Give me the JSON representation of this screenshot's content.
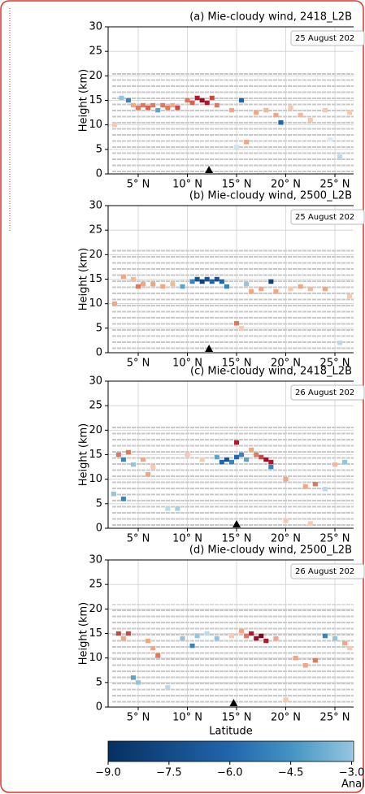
{
  "chart_data": [
    {
      "type": "heatmap",
      "title": "(a) Mie-cloudy wind, 2418_L2B",
      "annotation": "25 August 202",
      "ylabel": "Height (km)",
      "xlim": [
        1.94,
        26.9
      ],
      "ylim": [
        0,
        30
      ],
      "yticks": [
        0,
        5,
        10,
        15,
        20,
        25,
        30
      ],
      "xticks": [
        {
          "value": 5,
          "label": "5° N"
        },
        {
          "value": 10,
          "label": "10° N"
        },
        {
          "value": 15,
          "label": "15° N"
        },
        {
          "value": 20,
          "label": "20° N"
        },
        {
          "value": 25,
          "label": "25° N"
        }
      ],
      "marker_lat": 12.2,
      "grid": true,
      "cells": {
        "lat": [
          2.6,
          3.3,
          4.0,
          4.5,
          5.0,
          5.5,
          6.0,
          6.5,
          7.0,
          7.5,
          8.0,
          8.5,
          9.0,
          10.0,
          10.5,
          11.0,
          11.5,
          12.0,
          12.5,
          13.0,
          14.5,
          15.5,
          16.0,
          17.0,
          18.0,
          19.0,
          19.5,
          20.5,
          21.5,
          22.5,
          24.0,
          25.5,
          26.5,
          15.0,
          24.5
        ],
        "height": [
          10,
          15.5,
          15,
          14,
          13.5,
          14,
          13.5,
          14,
          13,
          14,
          13.5,
          14,
          13.5,
          15,
          14.5,
          15.5,
          15,
          14.5,
          15.5,
          14,
          13,
          15,
          6.5,
          12.5,
          13,
          12,
          10.5,
          13.5,
          12,
          11,
          13,
          3.5,
          12.5,
          5.5,
          7
        ],
        "values": [
          2,
          -3,
          -5,
          3,
          4,
          4,
          4.5,
          4,
          -4,
          4,
          4,
          3,
          5,
          4,
          4.5,
          6,
          7,
          6,
          5,
          4,
          3,
          -6,
          3,
          3,
          2.5,
          3,
          -6,
          2,
          2.5,
          2,
          2,
          -2,
          2,
          -1.5,
          -1
        ]
      }
    },
    {
      "type": "heatmap",
      "title": "(b) Mie-cloudy wind, 2500_L2B",
      "annotation": "25 August 202",
      "ylabel": "Height (km)",
      "xlim": [
        1.94,
        26.9
      ],
      "ylim": [
        0,
        30
      ],
      "yticks": [
        0,
        5,
        10,
        15,
        20,
        25,
        30
      ],
      "xticks": [
        {
          "value": 5,
          "label": "5° N"
        },
        {
          "value": 10,
          "label": "10° N"
        },
        {
          "value": 15,
          "label": "15° N"
        },
        {
          "value": 20,
          "label": "20° N"
        },
        {
          "value": 25,
          "label": "25° N"
        }
      ],
      "marker_lat": 12.2,
      "grid": true,
      "cells": {
        "lat": [
          2.6,
          3.5,
          4.5,
          5.0,
          5.5,
          6.5,
          7.5,
          8.5,
          9.5,
          10.5,
          11.0,
          11.5,
          12.0,
          12.5,
          13.0,
          13.5,
          14.0,
          15.0,
          15.5,
          16.0,
          16.5,
          17.5,
          18.5,
          19.0,
          20.5,
          21.5,
          22.5,
          24.0,
          25.5,
          26.5
        ],
        "height": [
          10,
          15.5,
          15,
          13.5,
          14,
          14,
          13.5,
          14,
          13.5,
          14.5,
          15,
          14.5,
          15,
          14.5,
          15,
          14.5,
          13.5,
          6,
          5,
          14,
          12.5,
          13,
          14.5,
          12.5,
          13,
          13.5,
          13,
          13,
          2,
          11.5
        ],
        "values": [
          3,
          3,
          2.5,
          4,
          3,
          3,
          3,
          2.5,
          -4,
          -5,
          -7,
          -8,
          -7,
          -6,
          -7,
          -6,
          -5,
          4,
          2,
          -3,
          3,
          3,
          -8,
          3,
          2,
          3,
          2.5,
          3,
          -2,
          2
        ]
      }
    },
    {
      "type": "heatmap",
      "title": "(c) Mie-cloudy wind, 2418_L2B",
      "annotation": "26 August 202",
      "ylabel": "Height (km)",
      "xlim": [
        1.94,
        26.9
      ],
      "ylim": [
        0,
        30
      ],
      "yticks": [
        0,
        5,
        10,
        15,
        20,
        25,
        30
      ],
      "xticks": [
        {
          "value": 5,
          "label": "5° N"
        },
        {
          "value": 10,
          "label": "10° N"
        },
        {
          "value": 15,
          "label": "15° N"
        },
        {
          "value": 20,
          "label": "20° N"
        },
        {
          "value": 25,
          "label": "25° N"
        }
      ],
      "marker_lat": 15.0,
      "grid": true,
      "cells": {
        "lat": [
          2.5,
          3.0,
          3.5,
          4.0,
          4.5,
          3.5,
          5.5,
          6.0,
          6.5,
          8.0,
          9.0,
          10.0,
          11.5,
          13.0,
          13.5,
          14.0,
          14.5,
          15.0,
          15.5,
          16.0,
          16.5,
          17.0,
          17.5,
          18.0,
          18.5,
          18.5,
          20.0,
          22.0,
          23.0,
          24.0,
          25.0,
          26.0,
          15.0,
          20.0,
          22.5
        ],
        "height": [
          7,
          15,
          14,
          15.5,
          13,
          6,
          14,
          11,
          12.5,
          4,
          4,
          15,
          14,
          14.5,
          13.5,
          14,
          13.5,
          14.5,
          15,
          14,
          16,
          15,
          14.5,
          14,
          13.5,
          12.5,
          10,
          8.5,
          9,
          8,
          13,
          13.5,
          17.5,
          1.5,
          1
        ],
        "values": [
          -3,
          4,
          -5,
          4,
          -3,
          -5,
          3,
          3,
          2,
          -2,
          -2.5,
          2,
          2,
          -4,
          -6,
          -7,
          -5,
          -6,
          -5,
          -4,
          3,
          4,
          5,
          7,
          6,
          -5,
          3,
          3,
          4,
          -2,
          2.5,
          -3,
          6,
          2,
          2
        ]
      }
    },
    {
      "type": "heatmap",
      "title": "(d) Mie-cloudy wind, 2500_L2B",
      "annotation": "26 August 202",
      "ylabel": "Height (km)",
      "xlabel": "Latitude",
      "xlim": [
        1.94,
        26.9
      ],
      "ylim": [
        0,
        30
      ],
      "yticks": [
        0,
        5,
        10,
        15,
        20,
        25,
        30
      ],
      "xticks": [
        {
          "value": 5,
          "label": "5° N"
        },
        {
          "value": 10,
          "label": "10° N"
        },
        {
          "value": 15,
          "label": "15° N"
        },
        {
          "value": 20,
          "label": "20° N"
        },
        {
          "value": 25,
          "label": "25° N"
        }
      ],
      "marker_lat": 14.7,
      "grid": true,
      "cells": {
        "lat": [
          3.0,
          3.5,
          4.0,
          4.5,
          5.0,
          6.0,
          6.5,
          7.0,
          8.0,
          9.5,
          10.5,
          11.0,
          12.0,
          13.0,
          14.5,
          15.5,
          16.0,
          16.5,
          17.0,
          17.5,
          18.0,
          19.0,
          21.0,
          22.0,
          23.0,
          24.0,
          25.0,
          26.0,
          20.0,
          26.5
        ],
        "height": [
          15,
          14,
          15,
          6,
          5,
          13.5,
          12,
          10.5,
          4,
          14,
          12.5,
          14.5,
          15,
          14,
          14.5,
          15.5,
          14.5,
          15,
          14,
          14.5,
          13.5,
          14,
          10,
          8.5,
          9.5,
          14.5,
          14,
          13,
          1.5,
          12
        ],
        "values": [
          5,
          3,
          5,
          -4,
          -3,
          3,
          3,
          4,
          -2,
          -3,
          -5,
          -3,
          -2,
          -3,
          2,
          3,
          4,
          6,
          7,
          8,
          6,
          3,
          3,
          3,
          4,
          -5,
          -3,
          3,
          2,
          2
        ]
      }
    },
    {
      "type": "colorbar",
      "label": "Analys",
      "xlim": [
        -9,
        -2.95
      ],
      "xticks": [
        {
          "value": -9,
          "label": "−9.0"
        },
        {
          "value": -7.5,
          "label": "−7.5"
        },
        {
          "value": -6,
          "label": "−6.0"
        },
        {
          "value": -4.5,
          "label": "−4.5"
        },
        {
          "value": -3,
          "label": "−3.0"
        }
      ],
      "colormap": [
        {
          "value": -9,
          "color": "#053061"
        },
        {
          "value": -6,
          "color": "#2166ac"
        },
        {
          "value": -4.5,
          "color": "#4393c3"
        },
        {
          "value": -3,
          "color": "#92c5de"
        },
        {
          "value": -1.5,
          "color": "#d1e5f0"
        },
        {
          "value": 0,
          "color": "#f7f7f7"
        },
        {
          "value": 1.5,
          "color": "#fddbc7"
        },
        {
          "value": 3,
          "color": "#f4a582"
        },
        {
          "value": 4.5,
          "color": "#d6604d"
        },
        {
          "value": 6,
          "color": "#b2182b"
        },
        {
          "value": 9,
          "color": "#67001f"
        }
      ]
    }
  ]
}
